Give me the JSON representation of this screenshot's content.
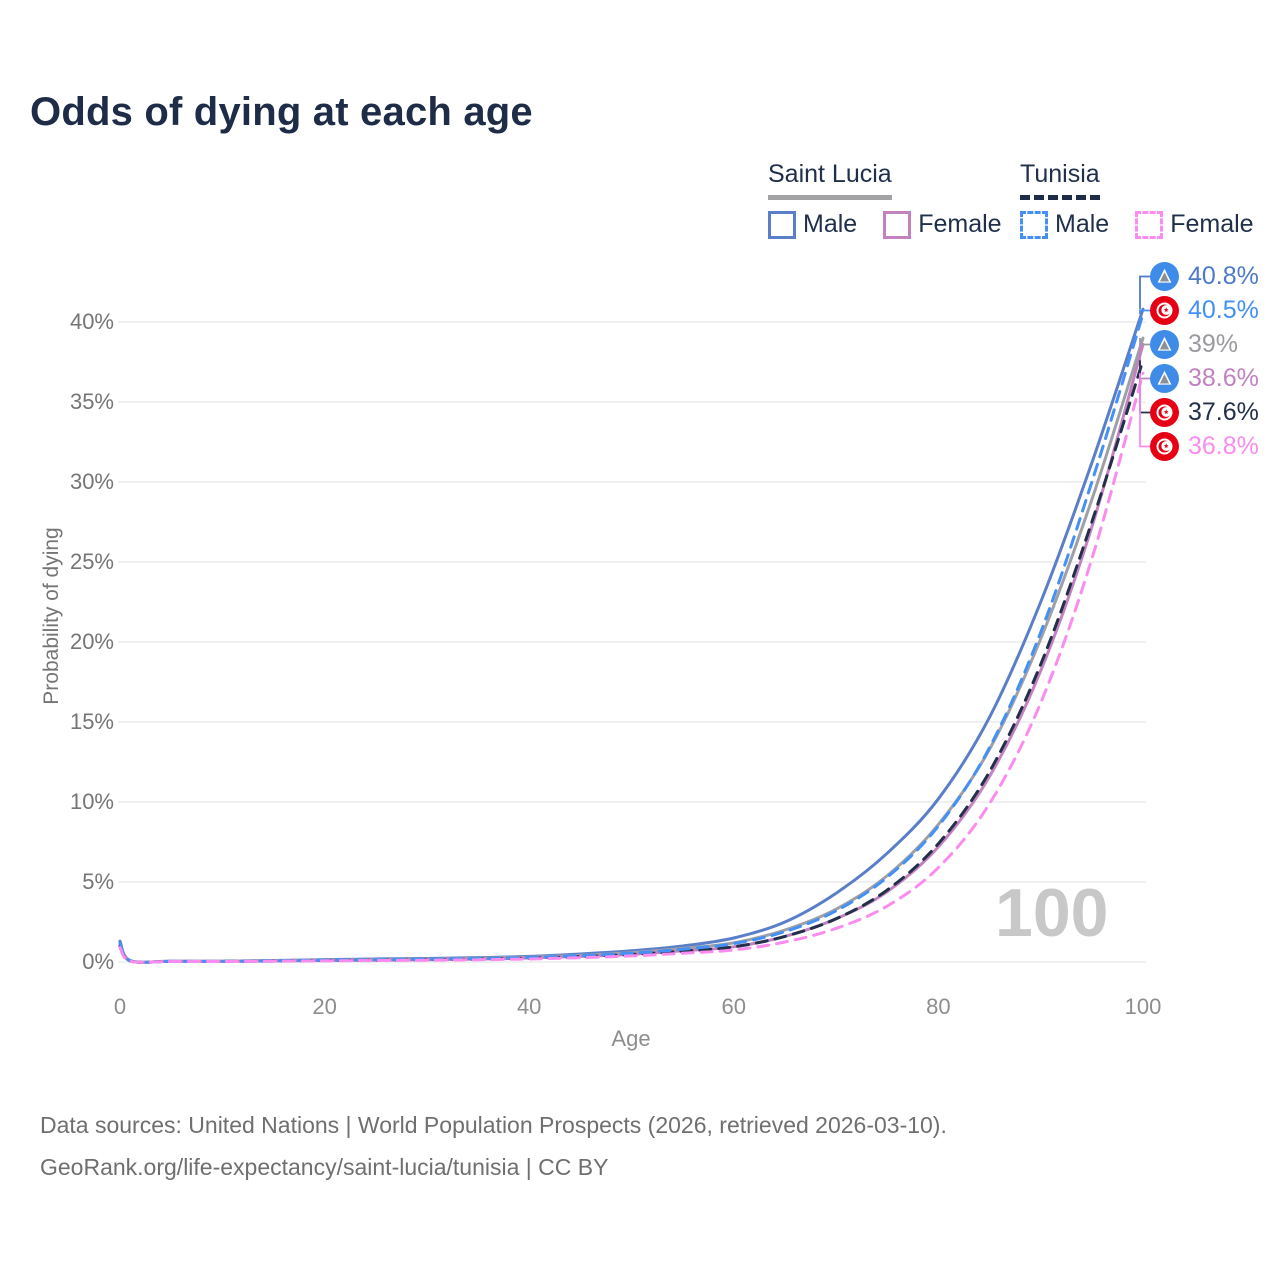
{
  "title": "Odds of dying at each age",
  "watermark_age": "100",
  "axes": {
    "y_label": "Probability of dying",
    "x_label": "Age",
    "y_ticks": [
      "40%",
      "35%",
      "30%",
      "25%",
      "20%",
      "15%",
      "10%",
      "5%",
      "0%"
    ],
    "x_ticks": [
      "0",
      "20",
      "40",
      "60",
      "80",
      "100"
    ]
  },
  "legend": {
    "groups": [
      {
        "country": "Saint Lucia",
        "line_style": "solid",
        "underline_color": "#a3a3a6",
        "items": [
          {
            "label": "Male",
            "color": "#5b7ec9"
          },
          {
            "label": "Female",
            "color": "#c281c1"
          }
        ]
      },
      {
        "country": "Tunisia",
        "line_style": "dashed",
        "underline_color": "#1e2c47",
        "items": [
          {
            "label": "Male",
            "color": "#4490f4"
          },
          {
            "label": "Female",
            "color": "#fa8cf0"
          }
        ]
      }
    ]
  },
  "end_labels": [
    {
      "flag": "saint-lucia",
      "value": "40.8%",
      "value_percent": 40.8,
      "color": "#4d79cc"
    },
    {
      "flag": "tunisia",
      "value": "40.5%",
      "value_percent": 40.5,
      "color": "#4191f5"
    },
    {
      "flag": "saint-lucia",
      "value": "39%",
      "value_percent": 39.0,
      "color": "#9a9aa0"
    },
    {
      "flag": "saint-lucia",
      "value": "38.6%",
      "value_percent": 38.6,
      "color": "#c281c1"
    },
    {
      "flag": "tunisia",
      "value": "37.6%",
      "value_percent": 37.6,
      "color": "#22304a"
    },
    {
      "flag": "tunisia",
      "value": "36.8%",
      "value_percent": 36.8,
      "color": "#fa8cf0"
    }
  ],
  "chart_data": {
    "type": "line",
    "title": "Odds of dying at each age",
    "xlabel": "Age",
    "ylabel": "Probability of dying",
    "xlim": [
      0,
      100
    ],
    "ylim_percent": [
      0,
      43
    ],
    "grid": "horizontal",
    "legend_position": "top-right",
    "x": [
      0,
      1,
      5,
      10,
      15,
      20,
      25,
      30,
      35,
      40,
      45,
      50,
      55,
      60,
      65,
      70,
      75,
      80,
      85,
      90,
      95,
      100
    ],
    "series": [
      {
        "name": "Saint Lucia — Male",
        "country": "Saint Lucia",
        "sex": "male",
        "style": "solid",
        "color": "#5b7ec9",
        "end_label": "40.8%",
        "values": [
          1.3,
          0.09,
          0.05,
          0.05,
          0.09,
          0.15,
          0.19,
          0.22,
          0.27,
          0.35,
          0.5,
          0.7,
          1.0,
          1.5,
          2.5,
          4.3,
          6.8,
          10.2,
          15.3,
          22.5,
          31.2,
          40.8
        ]
      },
      {
        "name": "Saint Lucia — Both sexes",
        "country": "Saint Lucia",
        "sex": "both",
        "style": "solid",
        "color": "#9fa0a6",
        "end_label": "39%",
        "values": [
          1.2,
          0.08,
          0.045,
          0.045,
          0.08,
          0.12,
          0.15,
          0.18,
          0.23,
          0.3,
          0.42,
          0.58,
          0.85,
          1.2,
          2.0,
          3.3,
          5.4,
          8.6,
          13.3,
          20.2,
          28.9,
          39.0
        ]
      },
      {
        "name": "Saint Lucia — Female",
        "country": "Saint Lucia",
        "sex": "female",
        "style": "solid",
        "color": "#c281c1",
        "end_label": "38.6%",
        "values": [
          1.1,
          0.07,
          0.04,
          0.04,
          0.06,
          0.09,
          0.11,
          0.14,
          0.18,
          0.25,
          0.35,
          0.48,
          0.7,
          0.95,
          1.6,
          2.7,
          4.4,
          7.2,
          11.6,
          18.2,
          27.2,
          38.6
        ]
      },
      {
        "name": "Tunisia — Both sexes",
        "country": "Tunisia",
        "sex": "both",
        "style": "dashed",
        "color": "#22304a",
        "end_label": "37.6%",
        "values": [
          1.0,
          0.06,
          0.035,
          0.035,
          0.06,
          0.09,
          0.11,
          0.14,
          0.18,
          0.24,
          0.34,
          0.47,
          0.68,
          0.95,
          1.6,
          2.7,
          4.5,
          7.4,
          11.9,
          18.6,
          27.5,
          37.6
        ]
      },
      {
        "name": "Tunisia — Male",
        "country": "Tunisia",
        "sex": "male",
        "style": "dashed",
        "color": "#4490f4",
        "end_label": "40.5%",
        "values": [
          1.2,
          0.07,
          0.04,
          0.04,
          0.07,
          0.11,
          0.14,
          0.17,
          0.21,
          0.28,
          0.4,
          0.55,
          0.8,
          1.15,
          1.9,
          3.2,
          5.3,
          8.5,
          13.4,
          20.6,
          30.0,
          40.5
        ]
      },
      {
        "name": "Tunisia — Female",
        "country": "Tunisia",
        "sex": "female",
        "style": "dashed",
        "color": "#fa8cf0",
        "end_label": "36.8%",
        "values": [
          0.9,
          0.05,
          0.03,
          0.03,
          0.05,
          0.07,
          0.09,
          0.11,
          0.14,
          0.19,
          0.27,
          0.38,
          0.55,
          0.75,
          1.25,
          2.1,
          3.5,
          5.9,
          9.9,
          16.2,
          25.2,
          36.8
        ]
      }
    ]
  },
  "footer": {
    "line1": "Data sources: United Nations | World Population Prospects (2026, retrieved 2026-03-10).",
    "line2": "GeoRank.org/life-expectancy/saint-lucia/tunisia | CC BY"
  }
}
